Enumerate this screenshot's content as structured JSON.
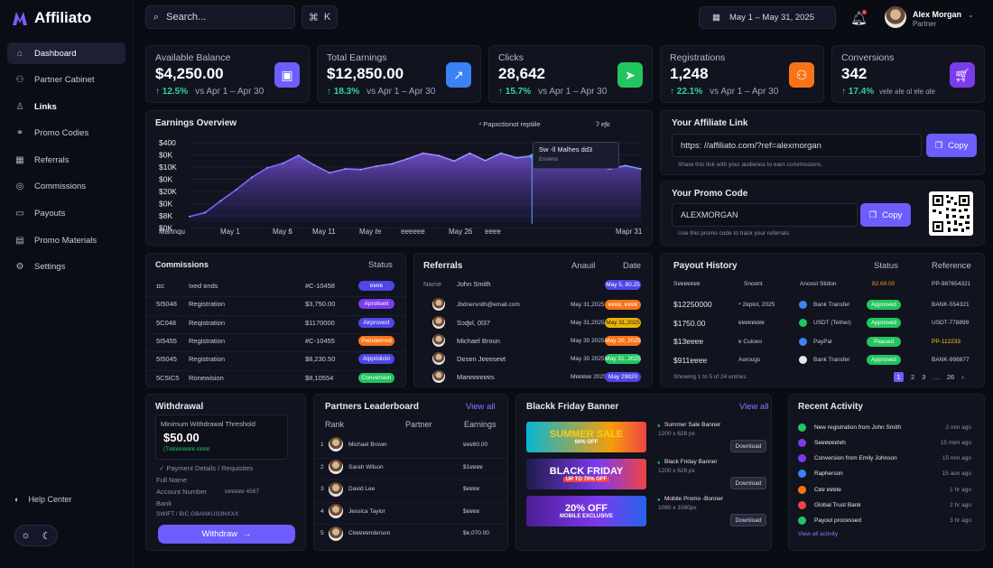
{
  "app": {
    "name": "Affiliato"
  },
  "nav": [
    {
      "label": "Dashboard",
      "icon": "home-icon",
      "active": true
    },
    {
      "label": "Partner Cabinet",
      "icon": "user-icon"
    },
    {
      "label": "Links",
      "icon": "person-icon"
    },
    {
      "label": "Promo Codies",
      "icon": "link-icon"
    },
    {
      "label": "Referrals",
      "icon": "building-icon"
    },
    {
      "label": "Commissions",
      "icon": "percent-icon"
    },
    {
      "label": "Payouts",
      "icon": "wallet-icon"
    },
    {
      "label": "Promo Materials",
      "icon": "doc-icon"
    },
    {
      "label": "Settings",
      "icon": "gear-icon"
    }
  ],
  "help": "Help Center",
  "topbar": {
    "search_placeholder": "Search...",
    "shortcut_symbol": "⌘",
    "shortcut_key": "K",
    "date_range": "May 1 – May 31, 2025",
    "user_name": "Alex Morgan",
    "user_role": "Partner"
  },
  "kpis": [
    {
      "label": "Available Balance",
      "value": "$4,250.00",
      "delta": "12.5%",
      "compare": "vs Apr 1 – Apr 30",
      "icon": "wallet-icon",
      "color": "#6d5dfc"
    },
    {
      "label": "Total Earnings",
      "value": "$12,850.00",
      "delta": "18.3%",
      "compare": "vs Apr 1 – Apr 30",
      "icon": "trend-up-icon",
      "color": "#3b82f6"
    },
    {
      "label": "Clicks",
      "value": "28,642",
      "delta": "15.7%",
      "compare": "vs Apr 1 – Apr 30",
      "icon": "cursor-icon",
      "color": "#22c55e"
    },
    {
      "label": "Registrations",
      "value": "1,248",
      "delta": "22.1%",
      "compare": "vs Apr 1 – Apr 30",
      "icon": "users-icon",
      "color": "#f97316"
    },
    {
      "label": "Conversions",
      "value": "342",
      "delta": "17.4%",
      "compare": "vɐlɐ əlɐ ol ɐlɐ  ɑlɐ",
      "icon": "cart-icon",
      "color": "#7c3aed"
    }
  ],
  "earnings": {
    "title": "Earnings Overview",
    "legend": "⁴ Papxctionot reptiile",
    "legend2": "ʔ eʃɐ",
    "tooltip_title": "Sw -ll Malhes dd3",
    "tooltip_sub": "Ɛnvens"
  },
  "chart_data": {
    "type": "area",
    "title": "Earnings Overview",
    "y_ticks": [
      "$400",
      "$0K",
      "$10K",
      "$0K",
      "$20K",
      "$0K",
      "$8K",
      "$0K"
    ],
    "x_ticks": [
      "Marinqu",
      "May 1",
      "May 𝟓",
      "May 11",
      "May ℓɐ",
      "ɐɐɐɐɐɐ",
      "May 26",
      "ɐɐɐɐ",
      "Mapr 31"
    ],
    "values": [
      10,
      17,
      38,
      58,
      80,
      97,
      105,
      119,
      102,
      88,
      95,
      94,
      100,
      104,
      113,
      123,
      119,
      109,
      123,
      110,
      123,
      115,
      118,
      112,
      116,
      105,
      100,
      95,
      101,
      95
    ],
    "ylim": [
      0,
      150
    ]
  },
  "affiliate": {
    "title": "Your Affiliate Link",
    "url": "https: //affiliato.com/?ref=alexmorgan",
    "copy": "Copy",
    "hint": "Share this link with your audience to earn commissions."
  },
  "promo": {
    "title": "Your Promo Code",
    "code": "ALEXMORGAN",
    "copy": "Copy",
    "hint": "Use this promo code to track your referrals."
  },
  "commissions": {
    "title": "Commissions",
    "status": "Status",
    "rows": [
      {
        "c1": "ɪɪc",
        "c2": "Ixed ɐnds",
        "c3": "#C-10458",
        "badge": "ɐɐɐɐ",
        "color": "#4f46e5"
      },
      {
        "c1": "5I5048",
        "c2": "Registration",
        "c3": "$3,750.00",
        "badge": "Aproliseit",
        "color": "#7c3aed"
      },
      {
        "c1": "5C048",
        "c2": "Reqistration",
        "c3": "$1170000",
        "badge": "Airprovect",
        "color": "#4f46e5"
      },
      {
        "c1": "5I5455",
        "c2": "Registration",
        "c3": "#C-10455",
        "badge": "Peindetrred",
        "color": "#f97316"
      },
      {
        "c1": "5I5045",
        "c2": "Registration",
        "c3": "$8,230.50",
        "badge": "Alppridicto",
        "color": "#4f46e5"
      },
      {
        "c1": "5C5IC5",
        "c2": "Ronewision",
        "c3": "$8,10554",
        "badge": "Conversion",
        "color": "#22c55e"
      }
    ]
  },
  "referrals": {
    "title": "Referrals",
    "col2": "Anauil",
    "col3": "Date",
    "hname": "Name",
    "hsub": "John Smith",
    "hbadge": "May 5, 80.25",
    "rows": [
      {
        "name": "Jbdnersnith@email.com",
        "date": "May 31,2025",
        "badge": "ɐɐɐɐ, ɐɐɐɐ",
        "color": "#f97316"
      },
      {
        "name": "Sɔɖɐl, 0l37",
        "date": "May 31,2025",
        "badge": "May 31,2025",
        "color": "#eab308"
      },
      {
        "name": "Michael Broun",
        "date": "May 30 2025",
        "badge": "May 20, 2025",
        "color": "#f97316"
      },
      {
        "name": "Dɐsɐn Jɐɐɐseɐt",
        "date": "May 30 2025",
        "badge": "May 31, 2025",
        "color": "#22c55e"
      },
      {
        "name": "Marɐɐɐɐɐɐs",
        "date": "Mɐɐɐɐɐ 2025",
        "badge": "May 29820",
        "color": "#4f46e5"
      }
    ]
  },
  "payouts": {
    "title": "Payout History",
    "status": "Status",
    "reference": "Reference",
    "hc1": "Sɐɐɐɐɐɐɐ",
    "hc2": "Snoont",
    "hc3": "Anoost Stidon",
    "hc4": "82.69.00",
    "rows": [
      {
        "amount": "$12250000",
        "date": "⁴ 2ɐplot, 2025",
        "method": "Bank Transfer",
        "status": "Approved",
        "color": "#22c55e",
        "ref": "BANK-554321"
      },
      {
        "amount": "$1750.00",
        "date": "ɐɐɐɐɐɐɐɐ",
        "method": "USDT (Tether)",
        "status": "Approved",
        "color": "#22c55e",
        "ref": "USDT-778899"
      },
      {
        "amount": "$13ɐɐɐɐ",
        "date": "ɐ Cuioeo",
        "method": "PayPal",
        "status": "Paased",
        "color": "#22c55e",
        "ref": "PP-112233"
      },
      {
        "amount": "$911ɐɐɐɐ",
        "date": "Aorougs",
        "method": "Bank Transfer",
        "status": "Approved",
        "color": "#22c55e",
        "ref": "BANK-998877"
      }
    ],
    "footer": "Showing 1 to 5 of 24 entries",
    "pages": [
      "1",
      "2",
      "3",
      "…",
      "26",
      "›"
    ]
  },
  "withdrawal": {
    "title": "Withdrawal",
    "min_label": "Minimum Withdrawal Threshold",
    "min_value": "$50.00",
    "min_note": "(Tɐɐɐɐɐɐɐɐ ɐɐɐɐ",
    "details": "Payment Details / Requisites",
    "full_name": "Full Name",
    "account": "Account Number",
    "account_val": "ɐɐɐɐɐɐ 4567",
    "bank": "Bank",
    "swift": "SWIFT / BIC GBANKUS3NXXX",
    "button": "Withdraw"
  },
  "leaderboard": {
    "title": "Partners Leaderboard",
    "view_all": "View all",
    "cols": [
      "Rank",
      "Partner",
      "Earnings"
    ],
    "rows": [
      {
        "rank": "1",
        "name": "Michael Brown",
        "earn": "ɐɐɐ60.00"
      },
      {
        "rank": "2",
        "name": "Sarah Wilson",
        "earn": "$1ɐɐɐɐ"
      },
      {
        "rank": "3",
        "name": "David Lee",
        "earn": "$ɐɐɐɐ"
      },
      {
        "rank": "4",
        "name": "Jessica Taylor",
        "earn": "$ɐɐɐɐ"
      },
      {
        "rank": "5",
        "name": "Cɐɐɐɐɐnderson",
        "earn": "$ɐ,070.00"
      }
    ]
  },
  "banners": {
    "title": "Blackk Friday Banner",
    "view_all": "View all",
    "items": [
      {
        "name": "Summer Sale Banner",
        "size": "1200 x 628 px",
        "btn": "Download",
        "art_title": "SUMMER SALE",
        "art_sub": "60% OFF"
      },
      {
        "name": "Black Friday Banner",
        "size": "1200 x 628 px",
        "btn": "Download",
        "art_title": "BLACK FRIDAY",
        "art_sub": "UP TO 70% OFF"
      },
      {
        "name": "Mobile Promo -Bonner",
        "size": "1080 x 1080px",
        "btn": "Download",
        "art_title": "20% OFF",
        "art_sub": "MOBILE EXCLUSIVE"
      }
    ]
  },
  "activity": {
    "title": "Recent Activity",
    "view_all": "View all activity",
    "items": [
      {
        "text": "New registration from John Smith",
        "time": "2 min ago",
        "color": "#22c55e"
      },
      {
        "text": "Seɐɐɐɐɐlɐh",
        "time": "15 mɐn ago",
        "color": "#7c3aed"
      },
      {
        "text": "Conversion from Emily Johnson",
        "time": "15 min ago",
        "color": "#7c3aed"
      },
      {
        "text": "Rapherson",
        "time": "15 aun ago",
        "color": "#3b82f6"
      },
      {
        "text": "Cɐɐ ɐɐɐte",
        "time": "1 hr ago",
        "color": "#f97316"
      },
      {
        "text": "Global Trust Bank",
        "time": "2 hr ago",
        "color": "#ef4444"
      },
      {
        "text": "Payout processed",
        "time": "3 hr ago",
        "color": "#22c55e"
      }
    ]
  }
}
